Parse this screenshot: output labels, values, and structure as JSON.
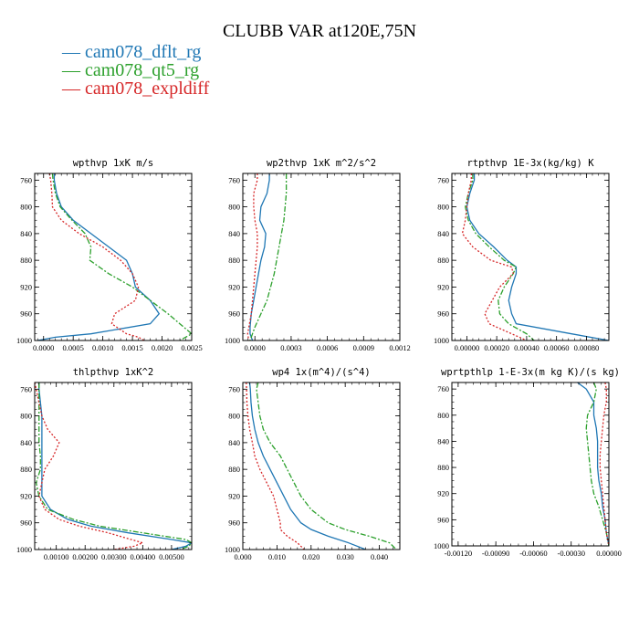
{
  "title": "CLUBB VAR at120E,75N",
  "legend": [
    {
      "name": "cam078_dflt_rg",
      "color": "#1f77b4",
      "dash": ""
    },
    {
      "name": "cam078_qt5_rg",
      "color": "#2ca02c",
      "dash": "6,2,2,2"
    },
    {
      "name": "cam078_expldiff",
      "color": "#d62728",
      "dash": "2,2"
    }
  ],
  "chart_data": [
    {
      "type": "line",
      "title": "wpthvp  1xK m/s",
      "xlim": [
        -0.00015,
        0.0025
      ],
      "ylim": [
        1000,
        750
      ],
      "xticks": [
        0,
        0.0005,
        0.001,
        0.0015,
        0.002,
        0.0025
      ],
      "xticklabels": [
        "0.0000",
        "0.0005",
        "0.0010",
        "0.0015",
        "0.0020",
        "0.0025"
      ],
      "yticks": [
        760,
        800,
        840,
        880,
        920,
        960,
        1000
      ],
      "y": [
        750,
        760,
        780,
        800,
        820,
        840,
        860,
        880,
        900,
        920,
        940,
        960,
        975,
        990,
        995,
        1000
      ],
      "series": [
        {
          "name": "cam078_dflt_rg",
          "x": [
            0.00018,
            0.00018,
            0.00022,
            0.0003,
            0.0005,
            0.0008,
            0.0011,
            0.0014,
            0.0015,
            0.00155,
            0.0018,
            0.00195,
            0.0018,
            0.0008,
            0.0002,
            -0.0001
          ]
        },
        {
          "name": "cam078_qt5_rg",
          "x": [
            0.00015,
            0.00016,
            0.0002,
            0.00028,
            0.00048,
            0.0007,
            0.0008,
            0.00078,
            0.0011,
            0.0015,
            0.0018,
            0.0021,
            0.0023,
            0.0025,
            0.0024,
            0.0023
          ]
        },
        {
          "name": "cam078_expldiff",
          "x": [
            0.0001,
            0.00012,
            0.00014,
            0.00015,
            0.0003,
            0.0006,
            0.001,
            0.0013,
            0.0015,
            0.0016,
            0.00155,
            0.0012,
            0.00115,
            0.0014,
            0.0016,
            0.0017
          ]
        }
      ]
    },
    {
      "type": "line",
      "title": "wp2thvp  1xK m^2/s^2",
      "xlim": [
        -0.0001,
        0.0012
      ],
      "ylim": [
        1000,
        750
      ],
      "xticks": [
        0,
        0.0003,
        0.0006,
        0.0009,
        0.0012
      ],
      "xticklabels": [
        "0.0000",
        "0.0003",
        "0.0006",
        "0.0009",
        "0.0012"
      ],
      "yticks": [
        760,
        800,
        840,
        880,
        920,
        960,
        1000
      ],
      "y": [
        750,
        760,
        780,
        800,
        820,
        840,
        860,
        880,
        900,
        920,
        940,
        960,
        980,
        990,
        1000
      ],
      "series": [
        {
          "name": "cam078_dflt_rg",
          "x": [
            0.00012,
            0.00012,
            0.0001,
            5e-05,
            4e-05,
            9e-05,
            8e-05,
            5e-05,
            3e-05,
            1e-05,
            -1e-05,
            -3e-05,
            -4e-05,
            -4e-05,
            -2e-05
          ]
        },
        {
          "name": "cam078_qt5_rg",
          "x": [
            0.00026,
            0.00026,
            0.00026,
            0.00025,
            0.00024,
            0.00022,
            0.0002,
            0.00018,
            0.00016,
            0.00013,
            0.0001,
            5e-05,
            0,
            -2e-05,
            -4e-05
          ]
        },
        {
          "name": "cam078_expldiff",
          "x": [
            2e-05,
            2e-05,
            -1e-05,
            -1e-05,
            0,
            2e-05,
            2e-05,
            1e-05,
            0,
            -1e-05,
            -2e-05,
            -3e-05,
            -5e-05,
            -6e-05,
            -5e-05
          ]
        }
      ]
    },
    {
      "type": "line",
      "title": "rtpthvp  1E-3x(kg/kg) K",
      "xlim": [
        -0.0001,
        0.00095
      ],
      "ylim": [
        1000,
        750
      ],
      "xticks": [
        0,
        0.0002,
        0.0004,
        0.0006,
        0.0008
      ],
      "xticklabels": [
        "0.00000",
        "0.00020",
        "0.00040",
        "0.00060",
        "0.00080"
      ],
      "yticks": [
        760,
        800,
        840,
        880,
        920,
        960,
        1000
      ],
      "y": [
        750,
        760,
        780,
        800,
        820,
        840,
        860,
        880,
        890,
        900,
        920,
        940,
        960,
        975,
        990,
        1000
      ],
      "series": [
        {
          "name": "cam078_dflt_rg",
          "x": [
            5e-05,
            5e-05,
            2e-05,
            0,
            2e-05,
            8e-05,
            0.00018,
            0.00027,
            0.00033,
            0.00033,
            0.0003,
            0.00028,
            0.0003,
            0.00033,
            0.0007,
            0.00095
          ]
        },
        {
          "name": "cam078_qt5_rg",
          "x": [
            4e-05,
            4e-05,
            1e-05,
            -1e-05,
            1e-05,
            6e-05,
            0.00015,
            0.00025,
            0.00033,
            0.00031,
            0.00025,
            0.00021,
            0.00022,
            0.00028,
            0.0004,
            0.00045
          ]
        },
        {
          "name": "cam078_expldiff",
          "x": [
            3e-05,
            3e-05,
            1e-05,
            0,
            -1e-05,
            -3e-05,
            4e-05,
            0.00016,
            0.0003,
            0.00031,
            0.00022,
            0.00017,
            0.00012,
            0.00015,
            0.0003,
            0.0004
          ]
        }
      ]
    },
    {
      "type": "line",
      "title": "thlpthvp  1xK^2",
      "xlim": [
        0.00025,
        0.0057
      ],
      "ylim": [
        1000,
        750
      ],
      "xticks": [
        0.001,
        0.002,
        0.003,
        0.004,
        0.005
      ],
      "xticklabels": [
        "0.00100",
        "0.00200",
        "0.00300",
        "0.00400",
        "0.00500"
      ],
      "yticks": [
        760,
        800,
        840,
        880,
        920,
        960,
        1000
      ],
      "y": [
        750,
        760,
        780,
        800,
        820,
        840,
        860,
        880,
        900,
        920,
        940,
        955,
        965,
        975,
        985,
        990,
        995,
        1000
      ],
      "series": [
        {
          "name": "cam078_dflt_rg",
          "x": [
            0.0004,
            0.0004,
            0.00045,
            0.0005,
            0.0005,
            0.0005,
            0.0005,
            0.0005,
            0.0005,
            0.0005,
            0.0008,
            0.0014,
            0.0022,
            0.0035,
            0.005,
            0.0057,
            0.0055,
            0.005
          ]
        },
        {
          "name": "cam078_qt5_rg",
          "x": [
            0.0004,
            0.0004,
            0.0004,
            0.0004,
            0.0004,
            0.0004,
            0.00045,
            0.00045,
            0.0003,
            0.0004,
            0.0007,
            0.0016,
            0.0025,
            0.004,
            0.0055,
            0.0057,
            0.0056,
            0.0053
          ]
        },
        {
          "name": "cam078_expldiff",
          "x": [
            0.00025,
            0.0003,
            0.0004,
            0.0005,
            0.0007,
            0.0011,
            0.0009,
            0.0006,
            0.0005,
            0.0004,
            0.0006,
            0.0011,
            0.0018,
            0.0028,
            0.0036,
            0.004,
            0.0037,
            0.003
          ]
        }
      ]
    },
    {
      "type": "line",
      "title": "wp4  1x(m^4)/(s^4)",
      "xlim": [
        0,
        0.046
      ],
      "ylim": [
        1000,
        750
      ],
      "xticks": [
        0,
        0.01,
        0.02,
        0.03,
        0.04
      ],
      "xticklabels": [
        "0.000",
        "0.010",
        "0.020",
        "0.030",
        "0.040"
      ],
      "yticks": [
        760,
        800,
        840,
        880,
        920,
        960,
        1000
      ],
      "y": [
        750,
        760,
        780,
        800,
        820,
        840,
        860,
        880,
        900,
        920,
        940,
        960,
        970,
        980,
        990,
        1000
      ],
      "series": [
        {
          "name": "cam078_dflt_rg",
          "x": [
            0.002,
            0.0022,
            0.0024,
            0.0028,
            0.0035,
            0.0045,
            0.006,
            0.008,
            0.01,
            0.012,
            0.014,
            0.017,
            0.02,
            0.025,
            0.031,
            0.036
          ]
        },
        {
          "name": "cam078_qt5_rg",
          "x": [
            0.0045,
            0.004,
            0.0045,
            0.005,
            0.006,
            0.008,
            0.011,
            0.013,
            0.015,
            0.017,
            0.02,
            0.025,
            0.03,
            0.037,
            0.043,
            0.045
          ]
        },
        {
          "name": "cam078_expldiff",
          "x": [
            0.001,
            0.0011,
            0.0012,
            0.0015,
            0.002,
            0.0028,
            0.0035,
            0.005,
            0.007,
            0.009,
            0.01,
            0.011,
            0.011,
            0.013,
            0.016,
            0.018
          ]
        }
      ]
    },
    {
      "type": "line",
      "title": "wprtpthlp  1-E-3x(m kg K)/(s kg)",
      "xlim": [
        -0.00125,
        0
      ],
      "ylim": [
        1000,
        750
      ],
      "xticks": [
        -0.0012,
        -0.0009,
        -0.0006,
        -0.0003,
        0
      ],
      "xticklabels": [
        "-0.00120",
        "-0.00090",
        "-0.00060",
        "-0.00030",
        "0.00000"
      ],
      "yticks": [
        760,
        800,
        840,
        880,
        920,
        960,
        1000
      ],
      "y": [
        750,
        760,
        780,
        800,
        820,
        840,
        860,
        880,
        900,
        920,
        940,
        960,
        980,
        1000
      ],
      "series": [
        {
          "name": "cam078_dflt_rg",
          "x": [
            -0.00025,
            -0.00018,
            -0.00012,
            -0.00012,
            -0.0001,
            -9e-05,
            -9e-05,
            -9e-05,
            -8e-05,
            -6e-05,
            -5e-05,
            -3e-05,
            -2e-05,
            0
          ]
        },
        {
          "name": "cam078_qt5_rg",
          "x": [
            -0.00012,
            -0.0001,
            -0.00012,
            -0.00017,
            -0.00018,
            -0.00017,
            -0.00016,
            -0.00015,
            -0.00014,
            -0.00012,
            -8e-05,
            -5e-05,
            -2e-05,
            0
          ]
        },
        {
          "name": "cam078_expldiff",
          "x": [
            -3e-05,
            -2e-05,
            -2e-05,
            -4e-05,
            -5e-05,
            -6e-05,
            -7e-05,
            -7e-05,
            -6e-05,
            -5e-05,
            -4e-05,
            -3e-05,
            -2e-05,
            0
          ]
        }
      ]
    }
  ]
}
